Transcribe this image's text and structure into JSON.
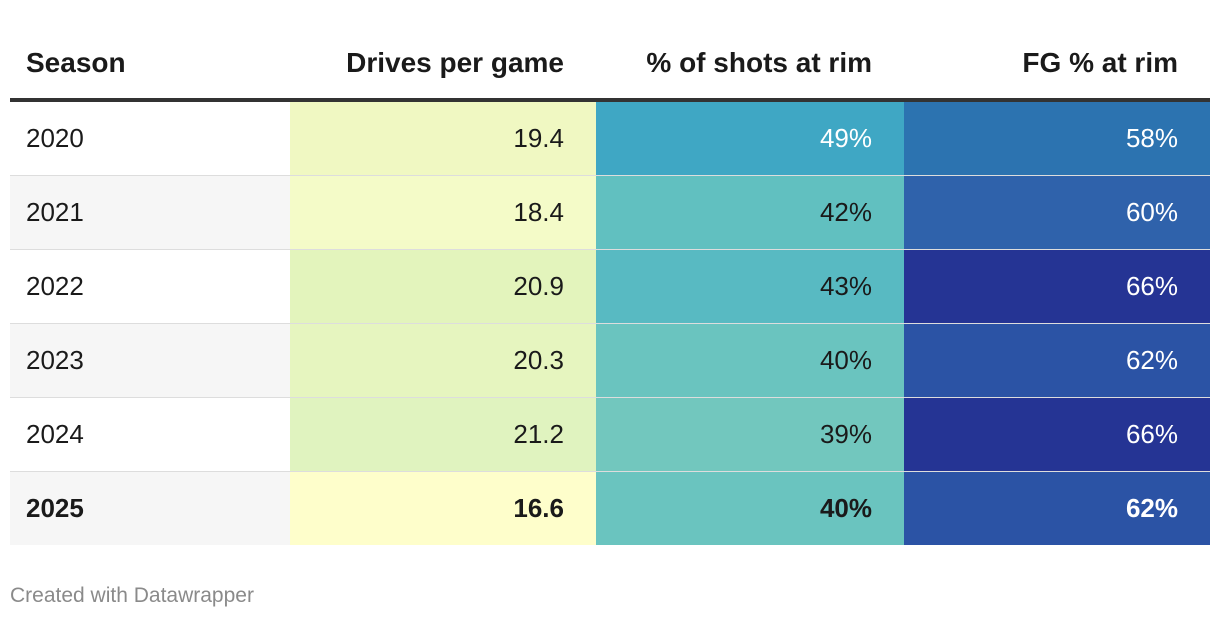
{
  "chart_data": {
    "type": "table",
    "columns": [
      "Season",
      "Drives per game",
      "% of shots at rim",
      "FG % at rim"
    ],
    "rows": [
      {
        "season": "2020",
        "drives": "19.4",
        "rim_shots": "49%",
        "rim_fg": "58%",
        "highlight": false
      },
      {
        "season": "2021",
        "drives": "18.4",
        "rim_shots": "42%",
        "rim_fg": "60%",
        "highlight": false
      },
      {
        "season": "2022",
        "drives": "20.9",
        "rim_shots": "43%",
        "rim_fg": "66%",
        "highlight": false
      },
      {
        "season": "2023",
        "drives": "20.3",
        "rim_shots": "40%",
        "rim_fg": "62%",
        "highlight": false
      },
      {
        "season": "2024",
        "drives": "21.2",
        "rim_shots": "39%",
        "rim_fg": "66%",
        "highlight": false
      },
      {
        "season": "2025",
        "drives": "16.6",
        "rim_shots": "40%",
        "rim_fg": "62%",
        "highlight": true
      }
    ],
    "cell_colors": {
      "drives": [
        "#f0f8c2",
        "#f4fbc8",
        "#e3f4bc",
        "#e6f5bf",
        "#e0f3bf",
        "#fefecb"
      ],
      "rim_shots": [
        "#3fa7c4",
        "#61c0c0",
        "#58bac2",
        "#6ac4bf",
        "#72c7be",
        "#6ac4bf"
      ],
      "rim_fg": [
        "#2c73b0",
        "#2f62ab",
        "#253494",
        "#2b53a5",
        "#253494",
        "#2b53a5"
      ]
    },
    "text_colors": {
      "drives": [
        "#1a1a1a",
        "#1a1a1a",
        "#1a1a1a",
        "#1a1a1a",
        "#1a1a1a",
        "#1a1a1a"
      ],
      "rim_shots": [
        "#ffffff",
        "#1a1a1a",
        "#1a1a1a",
        "#1a1a1a",
        "#1a1a1a",
        "#1a1a1a"
      ],
      "rim_fg": [
        "#ffffff",
        "#ffffff",
        "#ffffff",
        "#ffffff",
        "#ffffff",
        "#ffffff"
      ]
    }
  },
  "footer": {
    "credit": "Created with Datawrapper"
  }
}
